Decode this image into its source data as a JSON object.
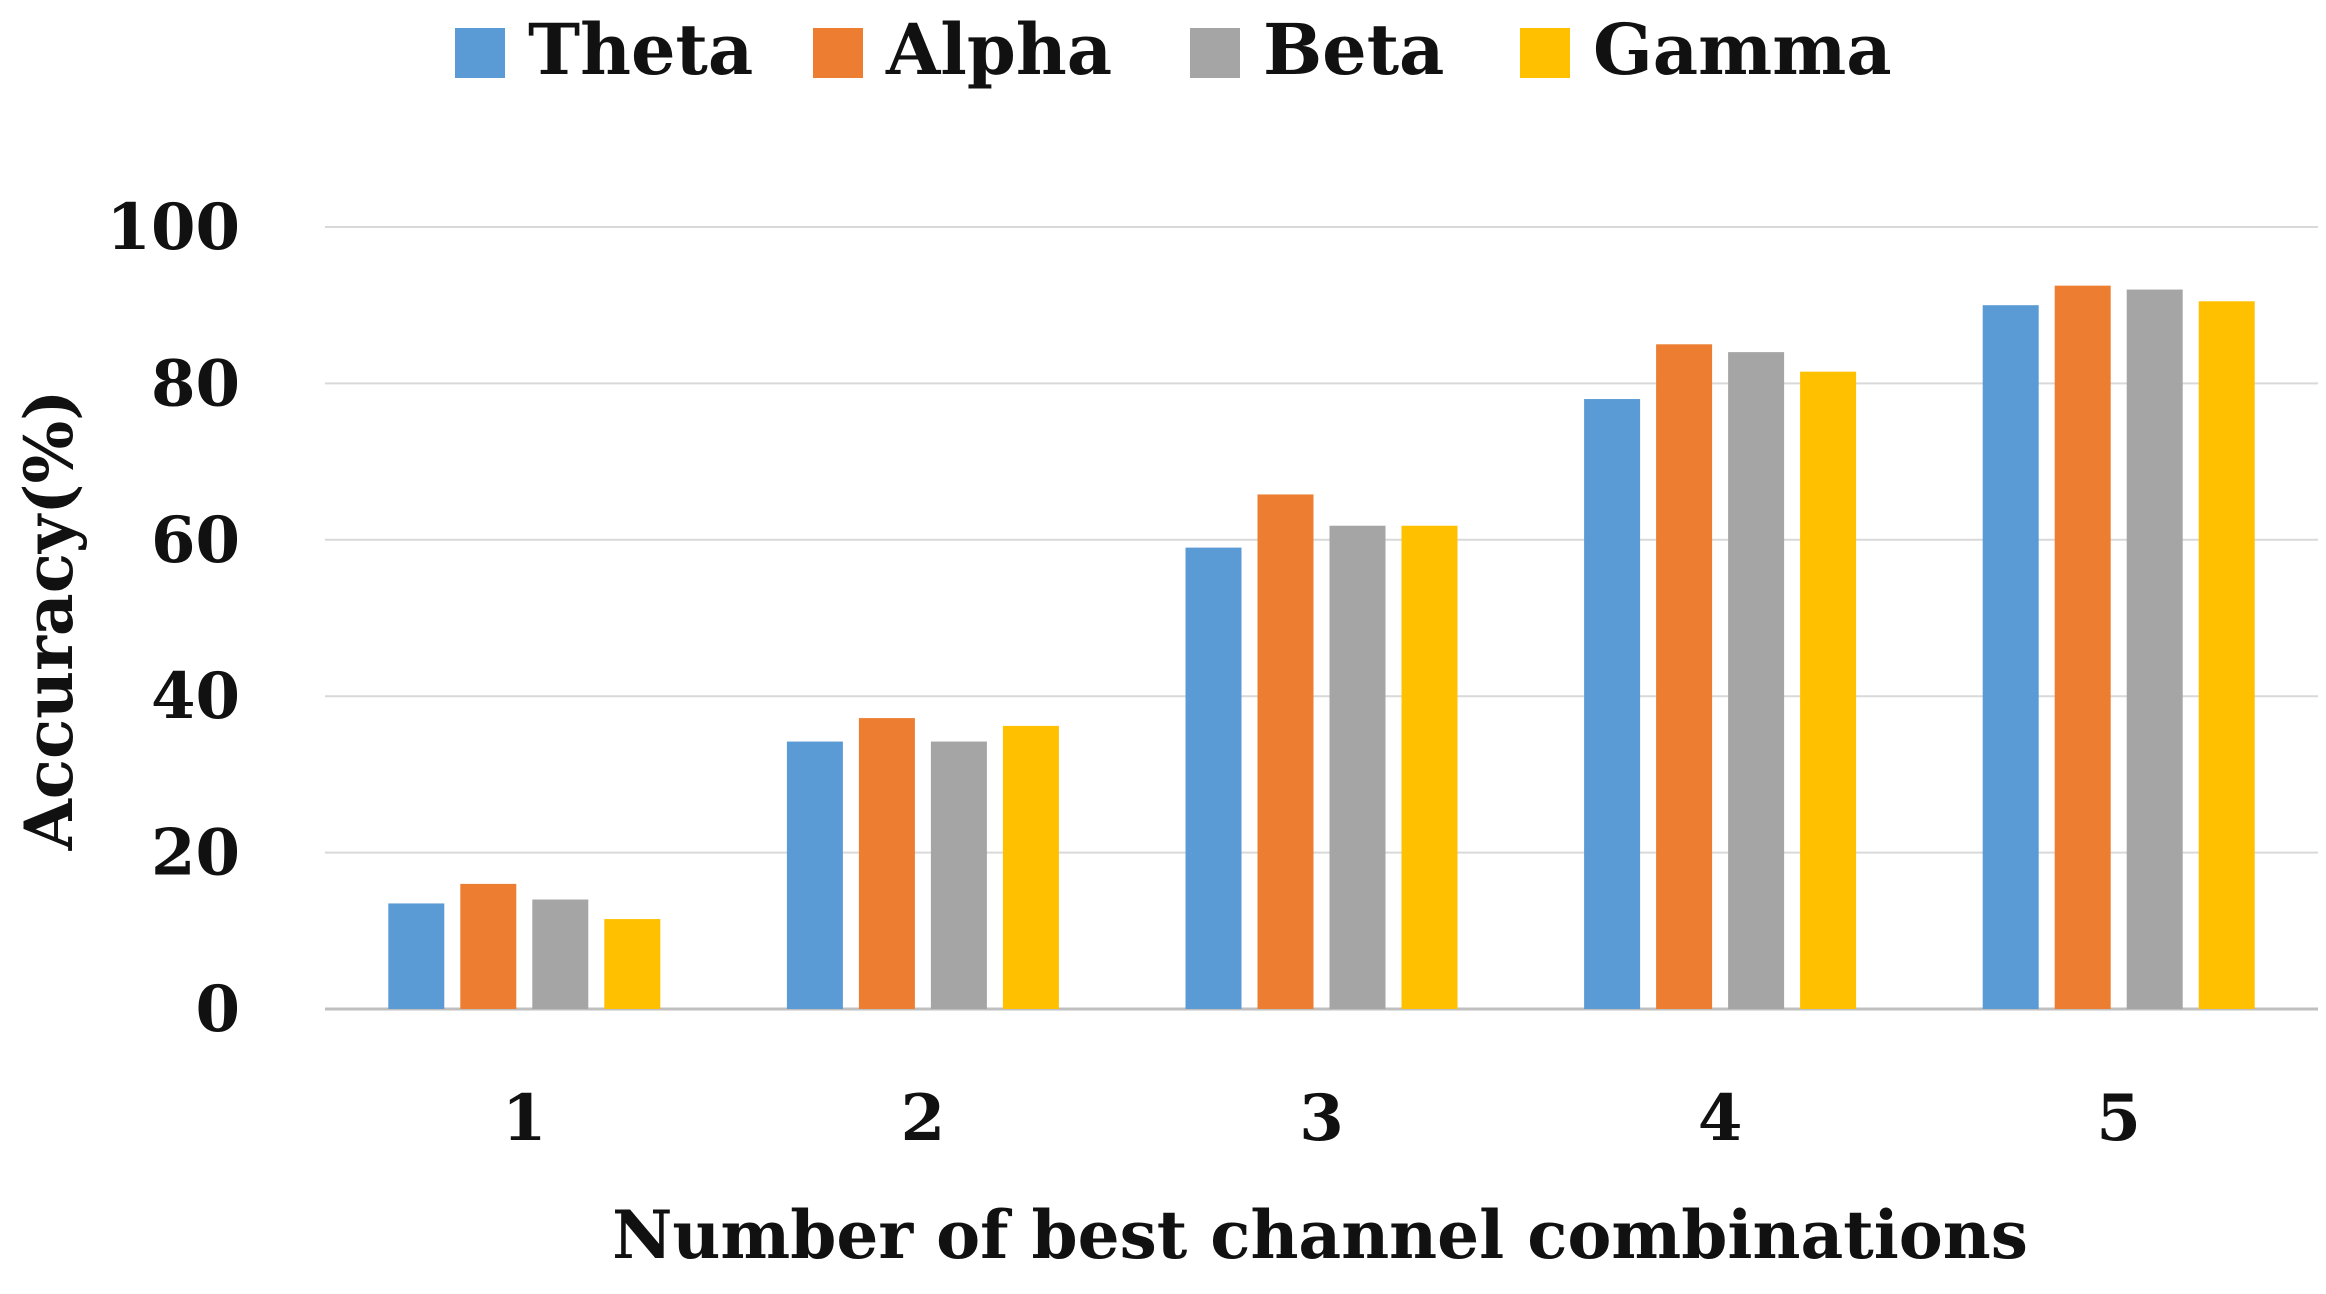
{
  "chart_data": {
    "type": "bar",
    "title": "",
    "xlabel": "Number of best channel combinations",
    "ylabel": "Accuracy(%)",
    "categories": [
      "1",
      "2",
      "3",
      "4",
      "5"
    ],
    "ylim": [
      0,
      100
    ],
    "yticks": [
      "0",
      "20",
      "40",
      "60",
      "80",
      "100"
    ],
    "grid": true,
    "legend_position": "top-center",
    "series": [
      {
        "name": "Theta",
        "color": "#5B9BD5",
        "values": [
          13.5,
          34.2,
          59.0,
          78.0,
          90.0
        ]
      },
      {
        "name": "Alpha",
        "color": "#ED7D31",
        "values": [
          16.0,
          37.2,
          65.8,
          85.0,
          92.5
        ]
      },
      {
        "name": "Beta",
        "color": "#A5A5A5",
        "values": [
          14.0,
          34.2,
          61.8,
          84.0,
          92.0
        ]
      },
      {
        "name": "Gamma",
        "color": "#FFC000",
        "values": [
          11.5,
          36.2,
          61.8,
          81.5,
          90.5
        ]
      }
    ]
  }
}
